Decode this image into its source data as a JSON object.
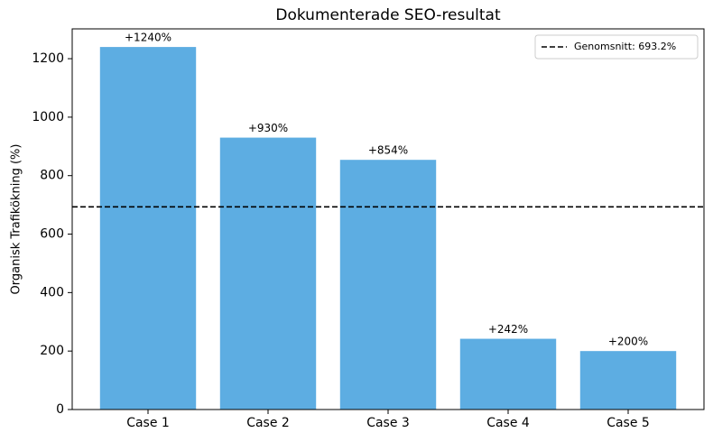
{
  "chart_data": {
    "type": "bar",
    "title": "Dokumenterade SEO-resultat",
    "ylabel": "Organisk Trafikökning (%)",
    "categories": [
      "Case 1",
      "Case 2",
      "Case 3",
      "Case 4",
      "Case 5"
    ],
    "values": [
      1240,
      930,
      854,
      242,
      200
    ],
    "value_labels": [
      "+1240%",
      "+930%",
      "+854%",
      "+242%",
      "+200%"
    ],
    "color": "#5dade2",
    "ylim": [
      0,
      1302
    ],
    "yticks": [
      0,
      200,
      400,
      600,
      800,
      1000,
      1200
    ],
    "average": {
      "value": 693.2,
      "label": "Genomsnitt: 693.2%",
      "color": "#000000"
    },
    "legend": "upper right"
  }
}
